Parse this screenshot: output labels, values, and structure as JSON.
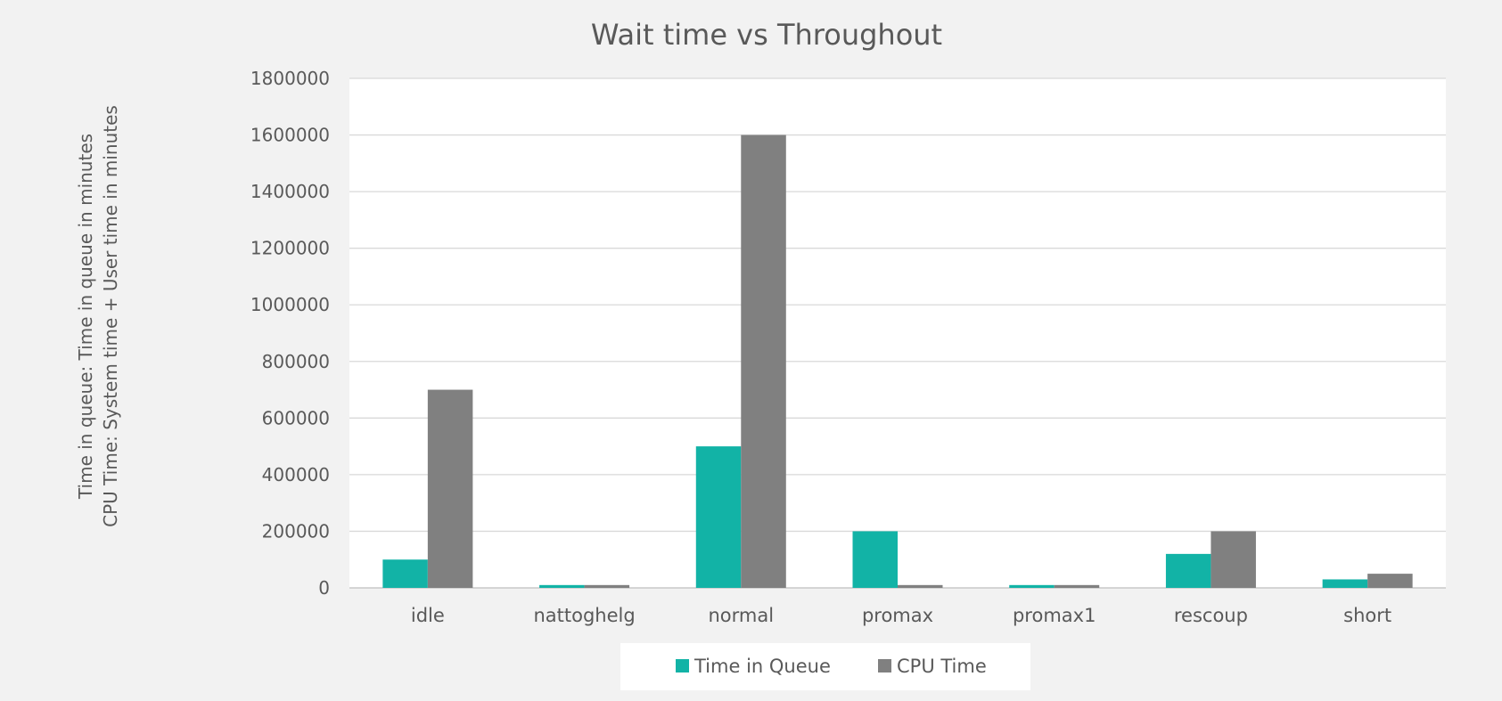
{
  "chart_data": {
    "type": "bar",
    "title": "Wait time vs Throughout",
    "ylabel_lines": [
      "Time in queue: Time in queue in minutes",
      "CPU Time: System time + User time in minutes"
    ],
    "xlabel": "",
    "categories": [
      "idle",
      "nattoghelg",
      "normal",
      "promax",
      "promax1",
      "rescoup",
      "short"
    ],
    "series": [
      {
        "name": "Time in Queue",
        "color": "#12b3a6",
        "values": [
          100000,
          10000,
          500000,
          200000,
          10000,
          120000,
          30000
        ]
      },
      {
        "name": "CPU Time",
        "color": "#808080",
        "values": [
          700000,
          10000,
          1600000,
          10000,
          10000,
          200000,
          50000
        ]
      }
    ],
    "ylim": [
      0,
      1800000
    ],
    "yticks": [
      0,
      200000,
      400000,
      600000,
      800000,
      1000000,
      1200000,
      1400000,
      1600000,
      1800000
    ],
    "ytick_labels": [
      "0",
      "200000",
      "400000",
      "600000",
      "800000",
      "1000000",
      "1200000",
      "1400000",
      "1600000",
      "1800000"
    ],
    "grid": true,
    "legend_position": "bottom"
  }
}
